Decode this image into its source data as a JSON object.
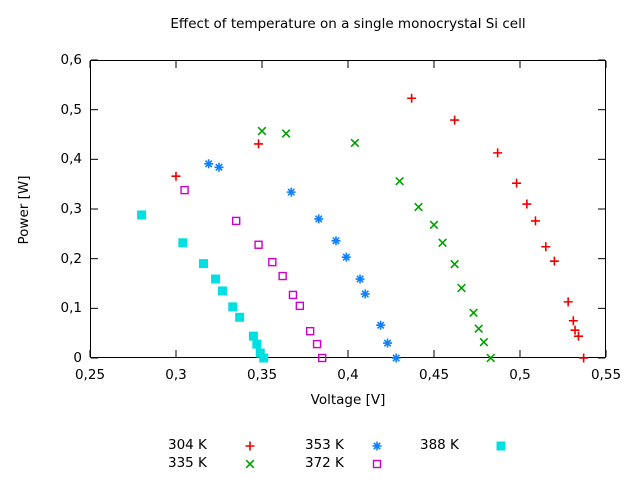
{
  "chart_data": {
    "type": "scatter",
    "title": "Effect of temperature on a single monocrystal Si cell",
    "xlabel": "Voltage [V]",
    "ylabel": "Power [W]",
    "xlim": [
      0.25,
      0.55
    ],
    "ylim": [
      0,
      0.6
    ],
    "grid": false,
    "x_ticks": [
      0.25,
      0.3,
      0.35,
      0.4,
      0.45,
      0.5,
      0.55
    ],
    "x_tick_labels": [
      "0,25",
      "0,3",
      "0,35",
      "0,4",
      "0,45",
      "0,5",
      "0,55"
    ],
    "y_ticks": [
      0,
      0.1,
      0.2,
      0.3,
      0.4,
      0.5,
      0.6
    ],
    "y_tick_labels": [
      "0",
      "0,1",
      "0,2",
      "0,3",
      "0,4",
      "0,5",
      "0,6"
    ],
    "legend_position": "below-bottom-center",
    "series": [
      {
        "name": "304 K",
        "marker": "plus",
        "color": "#ee0000",
        "points": [
          [
            0.3,
            0.366
          ],
          [
            0.348,
            0.431
          ],
          [
            0.437,
            0.523
          ],
          [
            0.462,
            0.479
          ],
          [
            0.487,
            0.413
          ],
          [
            0.498,
            0.352
          ],
          [
            0.504,
            0.31
          ],
          [
            0.509,
            0.276
          ],
          [
            0.515,
            0.224
          ],
          [
            0.52,
            0.195
          ],
          [
            0.528,
            0.113
          ],
          [
            0.531,
            0.075
          ],
          [
            0.532,
            0.056
          ],
          [
            0.534,
            0.044
          ],
          [
            0.537,
            0.0
          ]
        ]
      },
      {
        "name": "335 K",
        "marker": "cross",
        "color": "#00a000",
        "points": [
          [
            0.35,
            0.457
          ],
          [
            0.364,
            0.452
          ],
          [
            0.404,
            0.433
          ],
          [
            0.43,
            0.356
          ],
          [
            0.441,
            0.304
          ],
          [
            0.45,
            0.268
          ],
          [
            0.455,
            0.232
          ],
          [
            0.462,
            0.189
          ],
          [
            0.466,
            0.141
          ],
          [
            0.473,
            0.091
          ],
          [
            0.476,
            0.059
          ],
          [
            0.479,
            0.032
          ],
          [
            0.483,
            0.0
          ]
        ]
      },
      {
        "name": "353 K",
        "marker": "asterisk",
        "color": "#0f80ff",
        "points": [
          [
            0.319,
            0.391
          ],
          [
            0.325,
            0.384
          ],
          [
            0.367,
            0.334
          ],
          [
            0.383,
            0.28
          ],
          [
            0.393,
            0.236
          ],
          [
            0.399,
            0.203
          ],
          [
            0.407,
            0.159
          ],
          [
            0.41,
            0.129
          ],
          [
            0.419,
            0.066
          ],
          [
            0.423,
            0.03
          ],
          [
            0.428,
            0.0
          ]
        ]
      },
      {
        "name": "372 K",
        "marker": "open-square",
        "color": "#cc00cc",
        "points": [
          [
            0.305,
            0.338
          ],
          [
            0.335,
            0.276
          ],
          [
            0.348,
            0.228
          ],
          [
            0.356,
            0.193
          ],
          [
            0.362,
            0.165
          ],
          [
            0.368,
            0.127
          ],
          [
            0.372,
            0.105
          ],
          [
            0.378,
            0.054
          ],
          [
            0.382,
            0.028
          ],
          [
            0.385,
            0.0
          ]
        ]
      },
      {
        "name": "388 K",
        "marker": "filled-square",
        "color": "#00e0e0",
        "points": [
          [
            0.28,
            0.288
          ],
          [
            0.304,
            0.232
          ],
          [
            0.316,
            0.19
          ],
          [
            0.323,
            0.159
          ],
          [
            0.327,
            0.135
          ],
          [
            0.333,
            0.103
          ],
          [
            0.337,
            0.082
          ],
          [
            0.345,
            0.044
          ],
          [
            0.347,
            0.028
          ],
          [
            0.349,
            0.01
          ],
          [
            0.351,
            0.0
          ]
        ]
      }
    ]
  }
}
